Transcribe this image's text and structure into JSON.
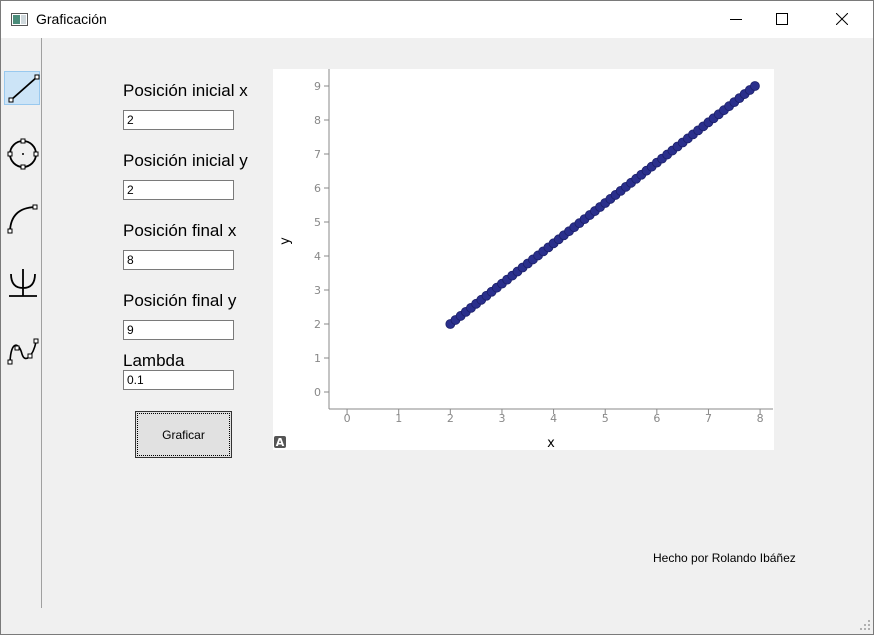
{
  "window": {
    "title": "Graficación",
    "minimize_icon": "minimize-icon",
    "maximize_icon": "maximize-icon",
    "close_icon": "close-icon"
  },
  "toolbar": {
    "items": [
      {
        "name": "line-tool",
        "icon": "line-icon",
        "active": true
      },
      {
        "name": "circle-tool",
        "icon": "circle-icon",
        "active": false
      },
      {
        "name": "arc-tool",
        "icon": "arc-icon",
        "active": false
      },
      {
        "name": "psi-tool",
        "icon": "psi-icon",
        "active": false
      },
      {
        "name": "curve-tool",
        "icon": "curve-icon",
        "active": false
      }
    ],
    "active_color": "#cce4f7"
  },
  "form": {
    "x0_label": "Posición inicial x",
    "x0_value": "2",
    "y0_label": "Posición inicial y",
    "y0_value": "2",
    "x1_label": "Posición final x",
    "x1_value": "8",
    "y1_label": "Posición final y",
    "y1_value": "9",
    "lambda_label": "Lambda",
    "lambda_value": "0.1",
    "submit_label": "Graficar"
  },
  "plot": {
    "autoscale_button": "A",
    "chart_data": {
      "type": "scatter",
      "xlabel": "x",
      "ylabel": "y",
      "xlim": [
        -0.35,
        8.25
      ],
      "ylim": [
        -0.5,
        9.5
      ],
      "xticks": [
        0,
        1,
        2,
        3,
        4,
        5,
        6,
        7,
        8
      ],
      "yticks": [
        0,
        1,
        2,
        3,
        4,
        5,
        6,
        7,
        8,
        9
      ],
      "grid": false,
      "marker_color": "#2a2f8c",
      "series": [
        {
          "start": [
            2,
            2
          ],
          "end": [
            7.9,
            9
          ],
          "step": 0.1
        }
      ]
    }
  },
  "footer": {
    "credit": "Hecho por Rolando Ibáñez"
  }
}
